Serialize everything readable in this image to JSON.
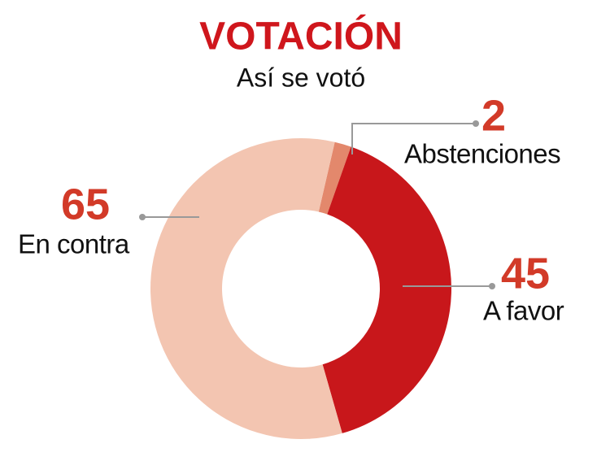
{
  "chart_data": {
    "type": "donut",
    "title": "VOTACIÓN",
    "subtitle": "Así se votó",
    "categories": [
      "Abstenciones",
      "A favor",
      "En contra"
    ],
    "values": [
      2,
      45,
      65
    ],
    "colors": [
      "#e3886c",
      "#c8171b",
      "#f3c5b1"
    ]
  }
}
